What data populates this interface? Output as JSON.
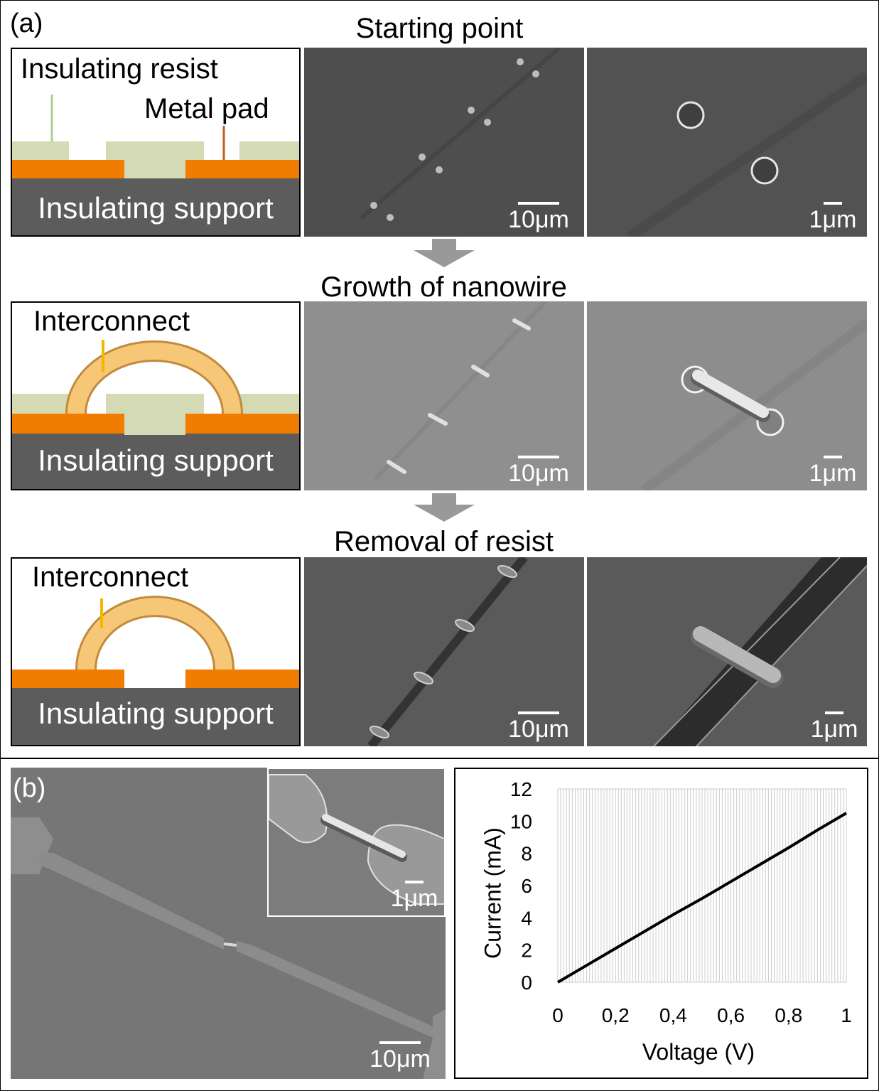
{
  "panel_a": {
    "label": "(a)",
    "stages": [
      {
        "title": "Starting point"
      },
      {
        "title": "Growth of nanowire"
      },
      {
        "title": "Removal of resist"
      }
    ],
    "schematic": {
      "insulating_resist": "Insulating resist",
      "metal_pad": "Metal pad",
      "insulating_support": "Insulating support",
      "interconnect": "Interconnect"
    },
    "scale_large": "10μm",
    "scale_small": "1μm",
    "colors": {
      "metal": "#f07c00",
      "resist": "#d4dab3",
      "support": "#5c5c5c",
      "wire": "#f5c776"
    }
  },
  "panel_b": {
    "label": "(b)",
    "scale_large": "10μm",
    "scale_inset": "1μm"
  },
  "chart_data": {
    "type": "line",
    "xlabel": "Voltage (V)",
    "ylabel": "Current (mA)",
    "xlim": [
      0,
      1
    ],
    "ylim": [
      0,
      12
    ],
    "xticks": [
      "0",
      "0,2",
      "0,4",
      "0,6",
      "0,8",
      "1"
    ],
    "yticks": [
      "0",
      "2",
      "4",
      "6",
      "8",
      "10",
      "12"
    ],
    "grid": "vertical",
    "series": [
      {
        "x": [
          0,
          0.1,
          0.2,
          0.3,
          0.4,
          0.5,
          0.6,
          0.7,
          0.8,
          0.9,
          1.0
        ],
        "y": [
          0,
          1.05,
          2.1,
          3.15,
          4.2,
          5.2,
          6.25,
          7.3,
          8.35,
          9.45,
          10.5
        ]
      }
    ]
  }
}
